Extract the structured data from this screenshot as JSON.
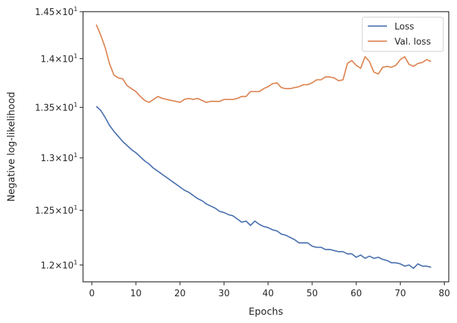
{
  "chart_data": {
    "type": "line",
    "title": "",
    "xlabel": "Epochs",
    "ylabel": "Negative log-likelihood",
    "xlim": [
      -2,
      81
    ],
    "ylim": [
      11.85,
      14.5
    ],
    "y_scale": "log",
    "grid": false,
    "legend_position": "top-right",
    "x_ticks": [
      0,
      10,
      20,
      30,
      40,
      50,
      60,
      70,
      80
    ],
    "y_ticks": [
      {
        "value": 12.0,
        "mantissa": "1.2"
      },
      {
        "value": 12.5,
        "mantissa": "1.25"
      },
      {
        "value": 13.0,
        "mantissa": "1.3"
      },
      {
        "value": 13.5,
        "mantissa": "1.35"
      },
      {
        "value": 14.0,
        "mantissa": "1.4"
      },
      {
        "value": 14.5,
        "mantissa": "1.45"
      }
    ],
    "y_tick_base": "10",
    "y_tick_exponent": "1",
    "x": [
      1,
      2,
      3,
      4,
      5,
      6,
      7,
      8,
      9,
      10,
      11,
      12,
      13,
      14,
      15,
      16,
      17,
      18,
      19,
      20,
      21,
      22,
      23,
      24,
      25,
      26,
      27,
      28,
      29,
      30,
      31,
      32,
      33,
      34,
      35,
      36,
      37,
      38,
      39,
      40,
      41,
      42,
      43,
      44,
      45,
      46,
      47,
      48,
      49,
      50,
      51,
      52,
      53,
      54,
      55,
      56,
      57,
      58,
      59,
      60,
      61,
      62,
      63,
      64,
      65,
      66,
      67,
      68,
      69,
      70,
      71,
      72,
      73,
      74,
      75,
      76,
      77
    ],
    "series": [
      {
        "name": "Loss",
        "color": "#4c72b0",
        "values": [
          13.51,
          13.47,
          13.4,
          13.32,
          13.26,
          13.21,
          13.16,
          13.12,
          13.08,
          13.05,
          13.01,
          12.97,
          12.94,
          12.9,
          12.87,
          12.84,
          12.81,
          12.78,
          12.75,
          12.72,
          12.69,
          12.67,
          12.64,
          12.61,
          12.59,
          12.56,
          12.54,
          12.52,
          12.49,
          12.48,
          12.46,
          12.45,
          12.42,
          12.39,
          12.4,
          12.36,
          12.4,
          12.37,
          12.35,
          12.34,
          12.32,
          12.31,
          12.28,
          12.27,
          12.25,
          12.23,
          12.2,
          12.2,
          12.2,
          12.17,
          12.16,
          12.16,
          12.14,
          12.14,
          12.13,
          12.12,
          12.12,
          12.1,
          12.1,
          12.07,
          12.09,
          12.06,
          12.08,
          12.06,
          12.07,
          12.05,
          12.04,
          12.02,
          12.02,
          12.01,
          11.99,
          12.0,
          11.97,
          12.01,
          11.99,
          11.99,
          11.98
        ]
      },
      {
        "name": "Val. loss",
        "color": "#dd8452",
        "values": [
          14.36,
          14.25,
          14.12,
          13.95,
          13.83,
          13.8,
          13.79,
          13.72,
          13.69,
          13.66,
          13.61,
          13.57,
          13.55,
          13.58,
          13.61,
          13.59,
          13.58,
          13.57,
          13.56,
          13.55,
          13.58,
          13.59,
          13.58,
          13.59,
          13.57,
          13.55,
          13.56,
          13.56,
          13.56,
          13.58,
          13.58,
          13.58,
          13.59,
          13.61,
          13.61,
          13.66,
          13.66,
          13.66,
          13.69,
          13.71,
          13.74,
          13.75,
          13.7,
          13.69,
          13.69,
          13.7,
          13.71,
          13.73,
          13.73,
          13.75,
          13.78,
          13.78,
          13.81,
          13.81,
          13.8,
          13.77,
          13.78,
          13.95,
          13.98,
          13.93,
          13.9,
          14.02,
          13.97,
          13.86,
          13.84,
          13.91,
          13.92,
          13.91,
          13.93,
          13.99,
          14.02,
          13.94,
          13.92,
          13.95,
          13.96,
          13.99,
          13.97
        ]
      }
    ]
  }
}
